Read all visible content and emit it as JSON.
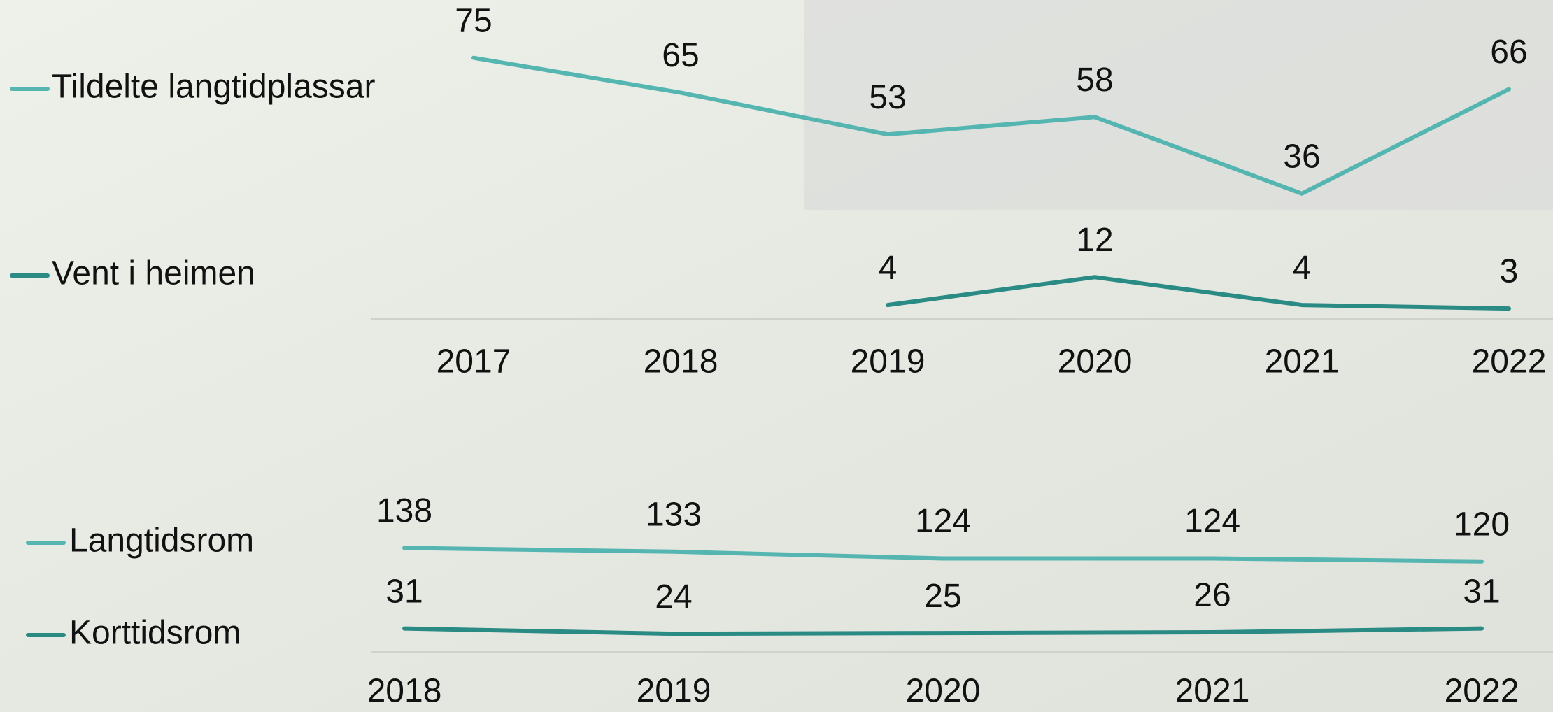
{
  "chart_data": [
    {
      "type": "line",
      "categories": [
        "2017",
        "2018",
        "2019",
        "2020",
        "2021",
        "2022"
      ],
      "series": [
        {
          "name": "Tildelte langtidplassar",
          "color": "#55b5b0",
          "values": [
            75,
            65,
            53,
            58,
            36,
            66
          ]
        },
        {
          "name": "Vent i heimen",
          "color": "#2a8a84",
          "values": [
            null,
            null,
            4,
            12,
            4,
            3
          ]
        }
      ],
      "ylim": [
        0,
        90
      ],
      "legend": "left"
    },
    {
      "type": "line",
      "categories": [
        "2018",
        "2019",
        "2020",
        "2021",
        "2022"
      ],
      "series": [
        {
          "name": "Langtidsrom",
          "color": "#55b5b0",
          "values": [
            138,
            133,
            124,
            124,
            120
          ]
        },
        {
          "name": "Korttidsrom",
          "color": "#2a8a84",
          "values": [
            31,
            24,
            25,
            26,
            31
          ]
        }
      ],
      "ylim": [
        0,
        300
      ],
      "legend": "left"
    }
  ]
}
